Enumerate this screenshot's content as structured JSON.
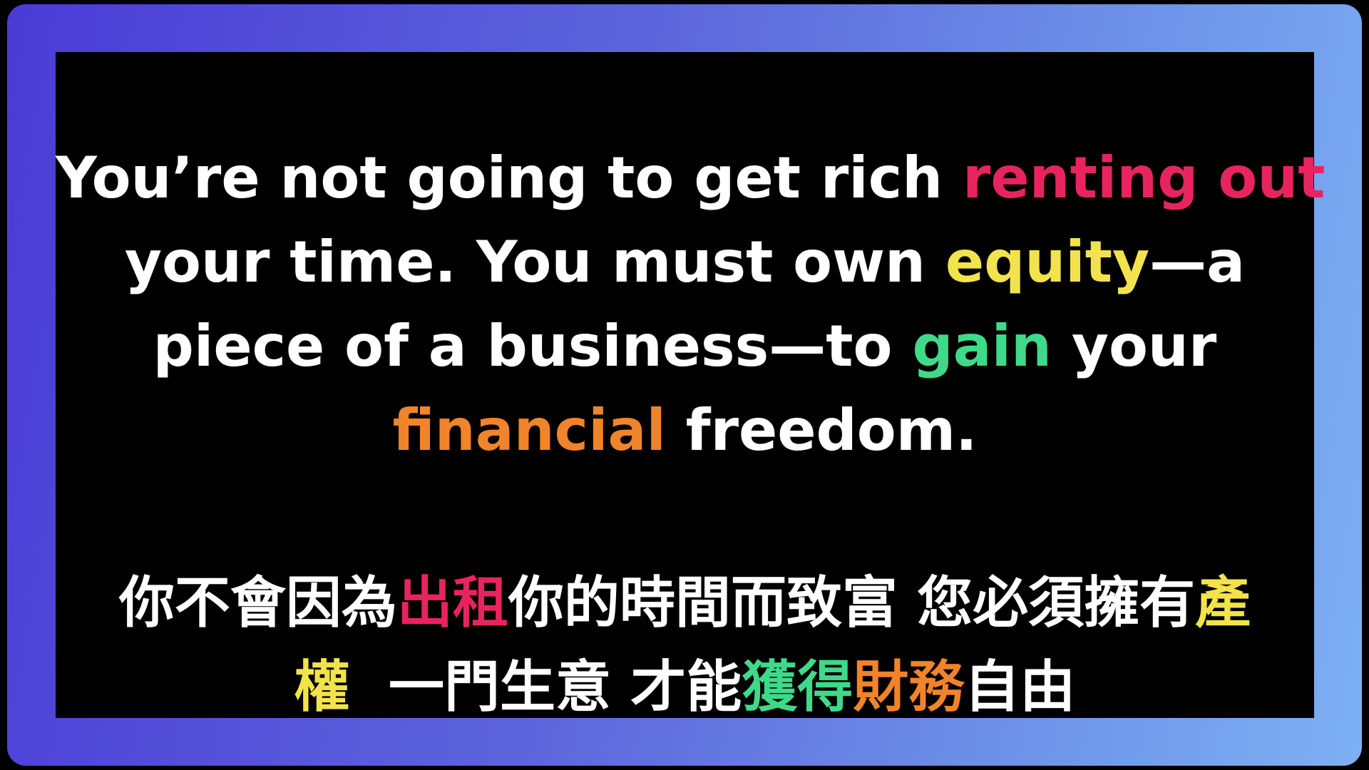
{
  "colors": {
    "frame_start": "#4a3bd6",
    "frame_end": "#7db0f4",
    "panel": "#000000",
    "text": "#ffffff",
    "pink": "#e8245f",
    "yellow": "#f2e34c",
    "green": "#3fd98a",
    "orange": "#f0842a"
  },
  "english": {
    "line1": [
      {
        "text": "You’re not going to get rich ",
        "color": "#ffffff"
      },
      {
        "text": "renting out",
        "color": "#e8245f"
      }
    ],
    "line2": [
      {
        "text": "your time. You must own ",
        "color": "#ffffff"
      },
      {
        "text": "equity",
        "color": "#f2e34c"
      },
      {
        "text": "—a",
        "color": "#ffffff"
      }
    ],
    "line3": [
      {
        "text": "piece of a business—to ",
        "color": "#ffffff"
      },
      {
        "text": "gain",
        "color": "#3fd98a"
      },
      {
        "text": " your",
        "color": "#ffffff"
      }
    ],
    "line4": [
      {
        "text": "financial",
        "color": "#f0842a"
      },
      {
        "text": " freedom.",
        "color": "#ffffff"
      }
    ]
  },
  "chinese": {
    "line1": [
      {
        "text": "你不會因為",
        "color": "#ffffff"
      },
      {
        "text": "出租",
        "color": "#e8245f"
      },
      {
        "text": "你的時間而致富 您必須擁有",
        "color": "#ffffff"
      },
      {
        "text": "產",
        "color": "#f2e34c"
      }
    ],
    "line2": [
      {
        "text": "權",
        "color": "#f2e34c"
      },
      {
        "text": "  一門生意 才能",
        "color": "#ffffff"
      },
      {
        "text": "獲得",
        "color": "#3fd98a"
      },
      {
        "text": "財務",
        "color": "#f0842a"
      },
      {
        "text": "自由",
        "color": "#ffffff"
      }
    ]
  }
}
